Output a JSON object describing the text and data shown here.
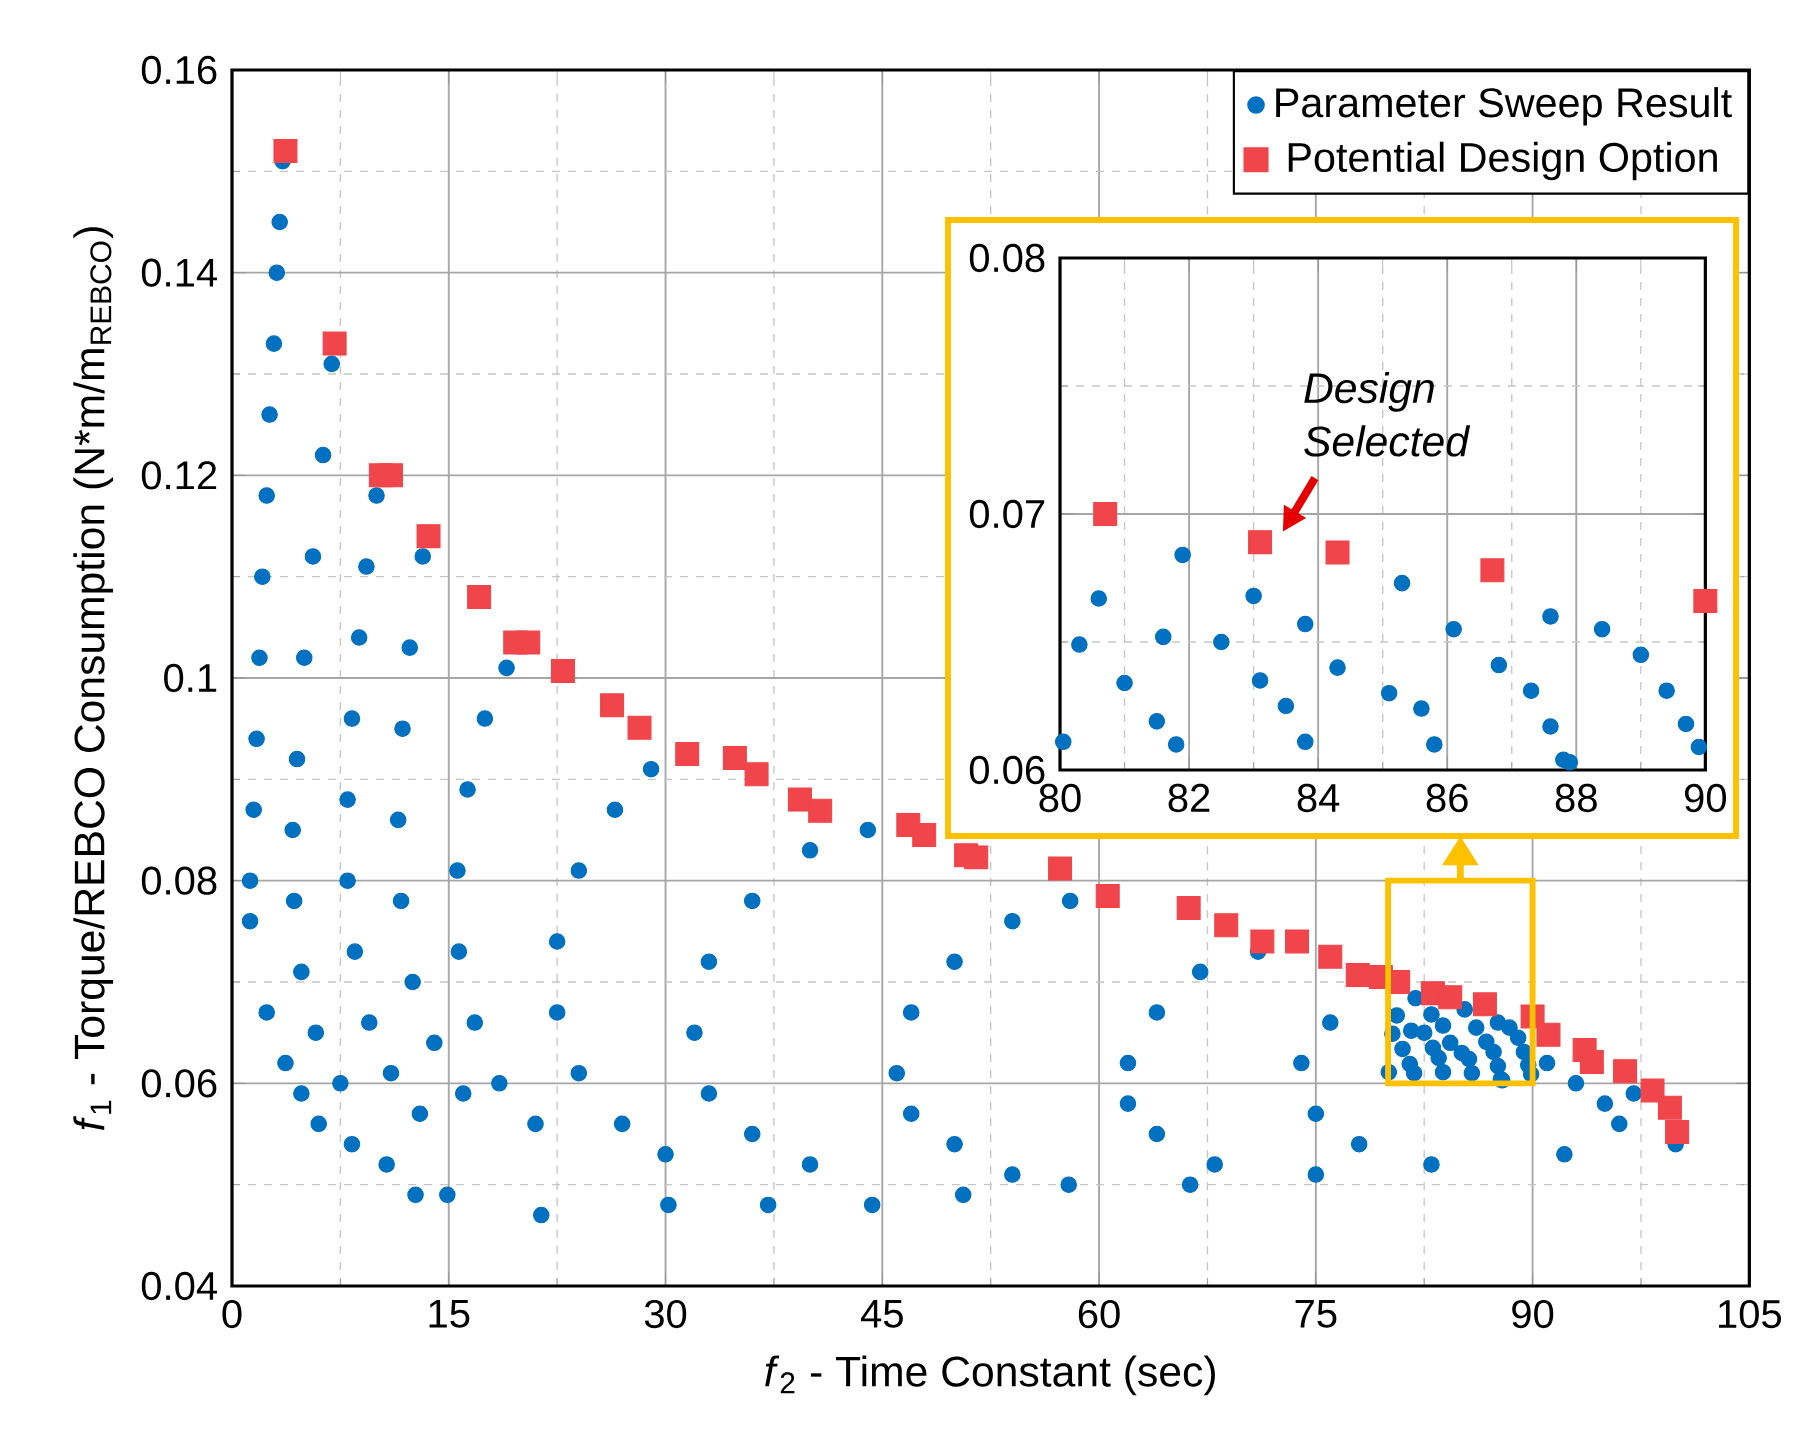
{
  "chart_data": [
    {
      "type": "scatter",
      "xlabel": "*f*$_{2}$ - Time Constant (sec)",
      "ylabel": "*f*$_{1}$ - Torque/REBCO Consumption (N*m/m$_{REBCO}$)",
      "xlim": [
        0,
        105
      ],
      "ylim": [
        0.04,
        0.16
      ],
      "xticks": [
        0,
        {
          "value": 7.5,
          "label": null
        },
        15,
        {
          "value": 22.5,
          "label": null
        },
        30,
        {
          "value": 37.5,
          "label": null
        },
        45,
        {
          "value": 52.5,
          "label": null
        },
        60,
        {
          "value": 67.5,
          "label": null
        },
        75,
        {
          "value": 82.5,
          "label": null
        },
        90,
        {
          "value": 97.5,
          "label": null
        },
        105
      ],
      "yticks": [
        0.04,
        {
          "value": 0.05,
          "label": null
        },
        0.06,
        {
          "value": 0.07,
          "label": null
        },
        0.08,
        {
          "value": 0.09,
          "label": null
        },
        0.1,
        {
          "value": 0.11,
          "label": null
        },
        0.12,
        {
          "value": 0.13,
          "label": null
        },
        0.14,
        {
          "value": 0.15,
          "label": null
        },
        0.16
      ],
      "grid": true,
      "legend": "top right",
      "series": [
        {
          "name": "Parameter Sweep Result",
          "color": "#0070c0",
          "marker": "circle",
          "x": [
            3.5,
            3.3,
            3.1,
            2.9,
            2.6,
            2.4,
            2.1,
            1.9,
            1.7,
            1.5,
            1.25,
            1.25,
            2.4,
            3.7,
            4.8,
            6.0,
            8.3,
            10.7,
            12.7,
            14.9,
            21.4,
            30.2,
            37.1,
            44.3,
            50.6,
            57.9,
            66.3,
            75,
            83.0,
            92.2,
            99.9,
            6.9,
            6.3,
            5.6,
            5.0,
            4.5,
            4.2,
            4.3,
            4.8,
            5.8,
            7.5,
            10.0,
            9.3,
            8.8,
            8.3,
            8.0,
            8.0,
            8.5,
            9.5,
            11,
            13,
            13.2,
            12.3,
            11.8,
            11.5,
            11.7,
            12.5,
            14,
            16,
            19,
            17.5,
            16.3,
            15.6,
            15.7,
            16.8,
            18.5,
            21,
            29,
            26.5,
            24,
            22.5,
            22.5,
            24,
            27,
            30,
            44,
            40,
            36,
            33,
            32,
            33,
            36,
            40,
            58,
            54,
            50,
            47,
            46,
            47,
            50,
            54,
            71,
            67,
            64,
            62,
            62,
            64,
            68,
            76,
            74,
            75,
            78,
            97,
            95,
            96,
            93,
            91,
            80.05,
            80.6,
            80.3,
            81.0,
            81.5,
            81.6,
            81.8,
            81.9,
            82.5,
            83.0,
            83.1,
            83.5,
            83.8,
            83.8,
            84.3,
            85.1,
            85.3,
            85.6,
            85.8,
            86.1,
            86.8,
            87.3,
            87.6,
            87.6,
            87.8,
            87.9,
            88.4,
            89.0,
            89.4,
            89.7,
            89.9
          ],
          "values": [
            0.151,
            0.145,
            0.14,
            0.133,
            0.126,
            0.118,
            0.11,
            0.102,
            0.094,
            0.087,
            0.08,
            0.076,
            0.067,
            0.062,
            0.059,
            0.056,
            0.054,
            0.052,
            0.049,
            0.049,
            0.047,
            0.048,
            0.048,
            0.048,
            0.049,
            0.05,
            0.05,
            0.051,
            0.052,
            0.053,
            0.054,
            0.131,
            0.122,
            0.112,
            0.102,
            0.092,
            0.085,
            0.078,
            0.071,
            0.065,
            0.06,
            0.118,
            0.111,
            0.104,
            0.096,
            0.088,
            0.08,
            0.073,
            0.066,
            0.061,
            0.057,
            0.112,
            0.103,
            0.095,
            0.086,
            0.078,
            0.07,
            0.064,
            0.059,
            0.101,
            0.096,
            0.089,
            0.081,
            0.073,
            0.066,
            0.06,
            0.056,
            0.091,
            0.087,
            0.081,
            0.074,
            0.067,
            0.061,
            0.056,
            0.053,
            0.085,
            0.083,
            0.078,
            0.072,
            0.065,
            0.059,
            0.055,
            0.052,
            0.078,
            0.076,
            0.072,
            0.067,
            0.061,
            0.057,
            0.054,
            0.051,
            0.073,
            0.071,
            0.067,
            0.062,
            0.058,
            0.055,
            0.052,
            0.066,
            0.062,
            0.057,
            0.054,
            0.059,
            0.058,
            0.056,
            0.06,
            0.062,
            0.0611,
            0.0667,
            0.0649,
            0.0634,
            0.0619,
            0.0652,
            0.061,
            0.0684,
            0.065,
            0.0668,
            0.0635,
            0.0625,
            0.0657,
            0.0611,
            0.064,
            0.063,
            0.0673,
            0.0624,
            0.061,
            0.0655,
            0.0641,
            0.0631,
            0.0617,
            0.066,
            0.0604,
            0.0603,
            0.0655,
            0.0645,
            0.0631,
            0.0618,
            0.0609
          ]
        },
        {
          "name": "Potential Design Option",
          "color": "#f0454a",
          "marker": "square",
          "x": [
            3.7,
            7.1,
            10.3,
            11.0,
            13.6,
            17.1,
            19.6,
            20.5,
            22.9,
            26.3,
            28.2,
            31.5,
            34.8,
            36.3,
            39.3,
            40.7,
            46.8,
            47.9,
            50.8,
            51.5,
            57.3,
            60.6,
            66.2,
            68.8,
            71.3,
            73.7,
            76.0,
            77.9,
            79.5,
            80.7,
            83.1,
            84.3,
            86.7,
            90.0,
            91.1,
            93.6,
            94.1,
            96.4,
            98.3,
            99.5,
            100.0
          ],
          "values": [
            0.152,
            0.133,
            0.12,
            0.12,
            0.114,
            0.108,
            0.1035,
            0.1035,
            0.1007,
            0.0973,
            0.0951,
            0.0925,
            0.0921,
            0.0905,
            0.088,
            0.0869,
            0.0855,
            0.0845,
            0.0825,
            0.0823,
            0.0812,
            0.0785,
            0.0773,
            0.0756,
            0.074,
            0.074,
            0.0725,
            0.0707,
            0.0705,
            0.07,
            0.0689,
            0.0685,
            0.0678,
            0.0666,
            0.0648,
            0.0633,
            0.0621,
            0.0612,
            0.0593,
            0.0576,
            0.0552
          ]
        }
      ]
    },
    {
      "type": "scatter",
      "xlim": [
        80,
        90
      ],
      "ylim": [
        0.06,
        0.08
      ],
      "xticks": [
        80,
        {
          "value": 81,
          "label": null
        },
        82,
        {
          "value": 83,
          "label": null
        },
        84,
        {
          "value": 85,
          "label": null
        },
        86,
        {
          "value": 87,
          "label": null
        },
        88,
        {
          "value": 89,
          "label": null
        },
        90
      ],
      "yticks": [
        0.06,
        {
          "value": 0.065,
          "label": null
        },
        0.07,
        {
          "value": 0.075,
          "label": null
        },
        0.08
      ],
      "grid": true,
      "annotations": [
        {
          "text": "Design Selected",
          "x": 83.1,
          "y": 0.0689
        }
      ],
      "series": [
        {
          "color": "#0070c0",
          "marker": "circle",
          "x": [
            80.05,
            80.6,
            80.3,
            81.0,
            81.5,
            81.6,
            81.8,
            81.9,
            82.5,
            83.0,
            83.1,
            83.5,
            83.8,
            83.8,
            84.3,
            85.1,
            85.3,
            85.6,
            85.8,
            86.1,
            86.8,
            87.3,
            87.6,
            87.6,
            87.8,
            87.9,
            88.4,
            89.0,
            89.4,
            89.7,
            89.9
          ],
          "values": [
            0.0611,
            0.0667,
            0.0649,
            0.0634,
            0.0619,
            0.0652,
            0.061,
            0.0684,
            0.065,
            0.0668,
            0.0635,
            0.0625,
            0.0657,
            0.0611,
            0.064,
            0.063,
            0.0673,
            0.0624,
            0.061,
            0.0655,
            0.0641,
            0.0631,
            0.0617,
            0.066,
            0.0604,
            0.0603,
            0.0655,
            0.0645,
            0.0631,
            0.0618,
            0.0609
          ]
        },
        {
          "color": "#f0454a",
          "marker": "square",
          "x": [
            80.7,
            83.1,
            84.3,
            86.7,
            90.0
          ],
          "values": [
            0.07,
            0.0689,
            0.0685,
            0.0678,
            0.0666
          ]
        }
      ]
    }
  ]
}
